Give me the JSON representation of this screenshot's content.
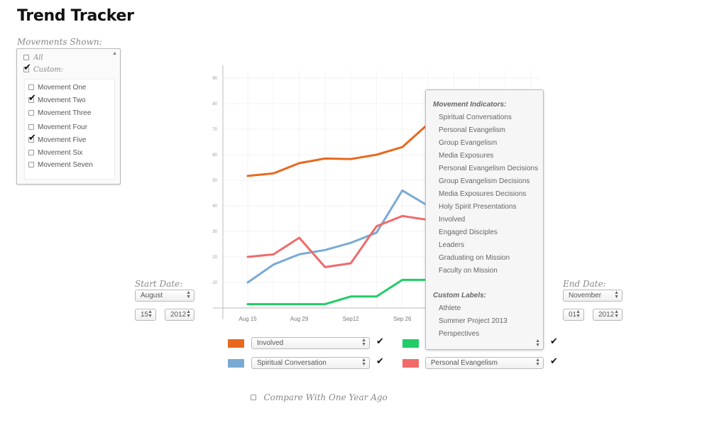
{
  "app": {
    "title": "Trend Tracker"
  },
  "movements": {
    "label": "Movements Shown:",
    "all_label": "All",
    "all_checked": false,
    "custom_label": "Custom:",
    "custom_checked": true,
    "items": [
      {
        "label": "Movement One",
        "checked": false
      },
      {
        "label": "Movement Two",
        "checked": true
      },
      {
        "label": "Movement Three",
        "checked": false
      },
      {
        "label": "Movement Four",
        "checked": false
      },
      {
        "label": "Movement Five",
        "checked": true
      },
      {
        "label": "Movement Six",
        "checked": false
      },
      {
        "label": "Movement Seven",
        "checked": false
      }
    ]
  },
  "start_date": {
    "label": "Start Date:",
    "month": "August",
    "day": "15",
    "year": "2012"
  },
  "end_date": {
    "label": "End Date:",
    "month": "November",
    "day": "01",
    "year": "2012"
  },
  "chart_data": {
    "type": "line",
    "title": "",
    "xlabel": "",
    "ylabel": "",
    "x_tick_labels": [
      "Aug 15",
      "Aug 29",
      "Sep12",
      "Sep 26"
    ],
    "y_ticks": [
      10,
      20,
      30,
      40,
      50,
      60,
      70,
      80,
      90
    ],
    "ylim": [
      0,
      95
    ],
    "grid": true,
    "series": [
      {
        "color": "#e8691e",
        "values": [
          51.7,
          52.7,
          56.7,
          58.5,
          58.3,
          60,
          63,
          72
        ]
      },
      {
        "color": "#7aaad4",
        "values": [
          10,
          17,
          21,
          22.7,
          25.5,
          29.5,
          46,
          40
        ]
      },
      {
        "color": "#f06a6a",
        "values": [
          20,
          21,
          27.5,
          16,
          17.5,
          32,
          36,
          34.5
        ]
      },
      {
        "color": "#22cc66",
        "values": [
          1.5,
          1.5,
          1.5,
          1.5,
          4.5,
          4.5,
          11,
          11
        ]
      }
    ]
  },
  "series_controls": [
    {
      "color": "#e8691e",
      "label": "Involved",
      "checked": true
    },
    {
      "color": "#22cc66",
      "label": "",
      "checked": true
    },
    {
      "color": "#7aaad4",
      "label": "Spiritual Conversation",
      "checked": true
    },
    {
      "color": "#f06a6a",
      "label": "Personal Evangelism",
      "checked": true
    }
  ],
  "indicator_dropdown": {
    "group1_label": "Movement Indicators:",
    "group1": [
      "Spiritual Conversations",
      "Personal Evangelism",
      "Group Evangelism",
      "Media Exposures",
      "Personal Evangelism Decisions",
      "Group Evangelism Decisions",
      "Media Exposures Decisions",
      "Holy Spirit Presentations",
      "Involved",
      "Engaged Disciples",
      "Leaders",
      "Graduating on Mission",
      "Faculty on Mission"
    ],
    "group2_label": "Custom Labels:",
    "group2": [
      "Athlete",
      "Summer Project 2013",
      "Perspectives"
    ]
  },
  "compare": {
    "label": "Compare With One Year Ago",
    "checked": false
  },
  "icons": {
    "checkbox": "checkbox-icon",
    "checkmark": "checkmark-icon",
    "select_arrows": "select-arrows-icon"
  }
}
